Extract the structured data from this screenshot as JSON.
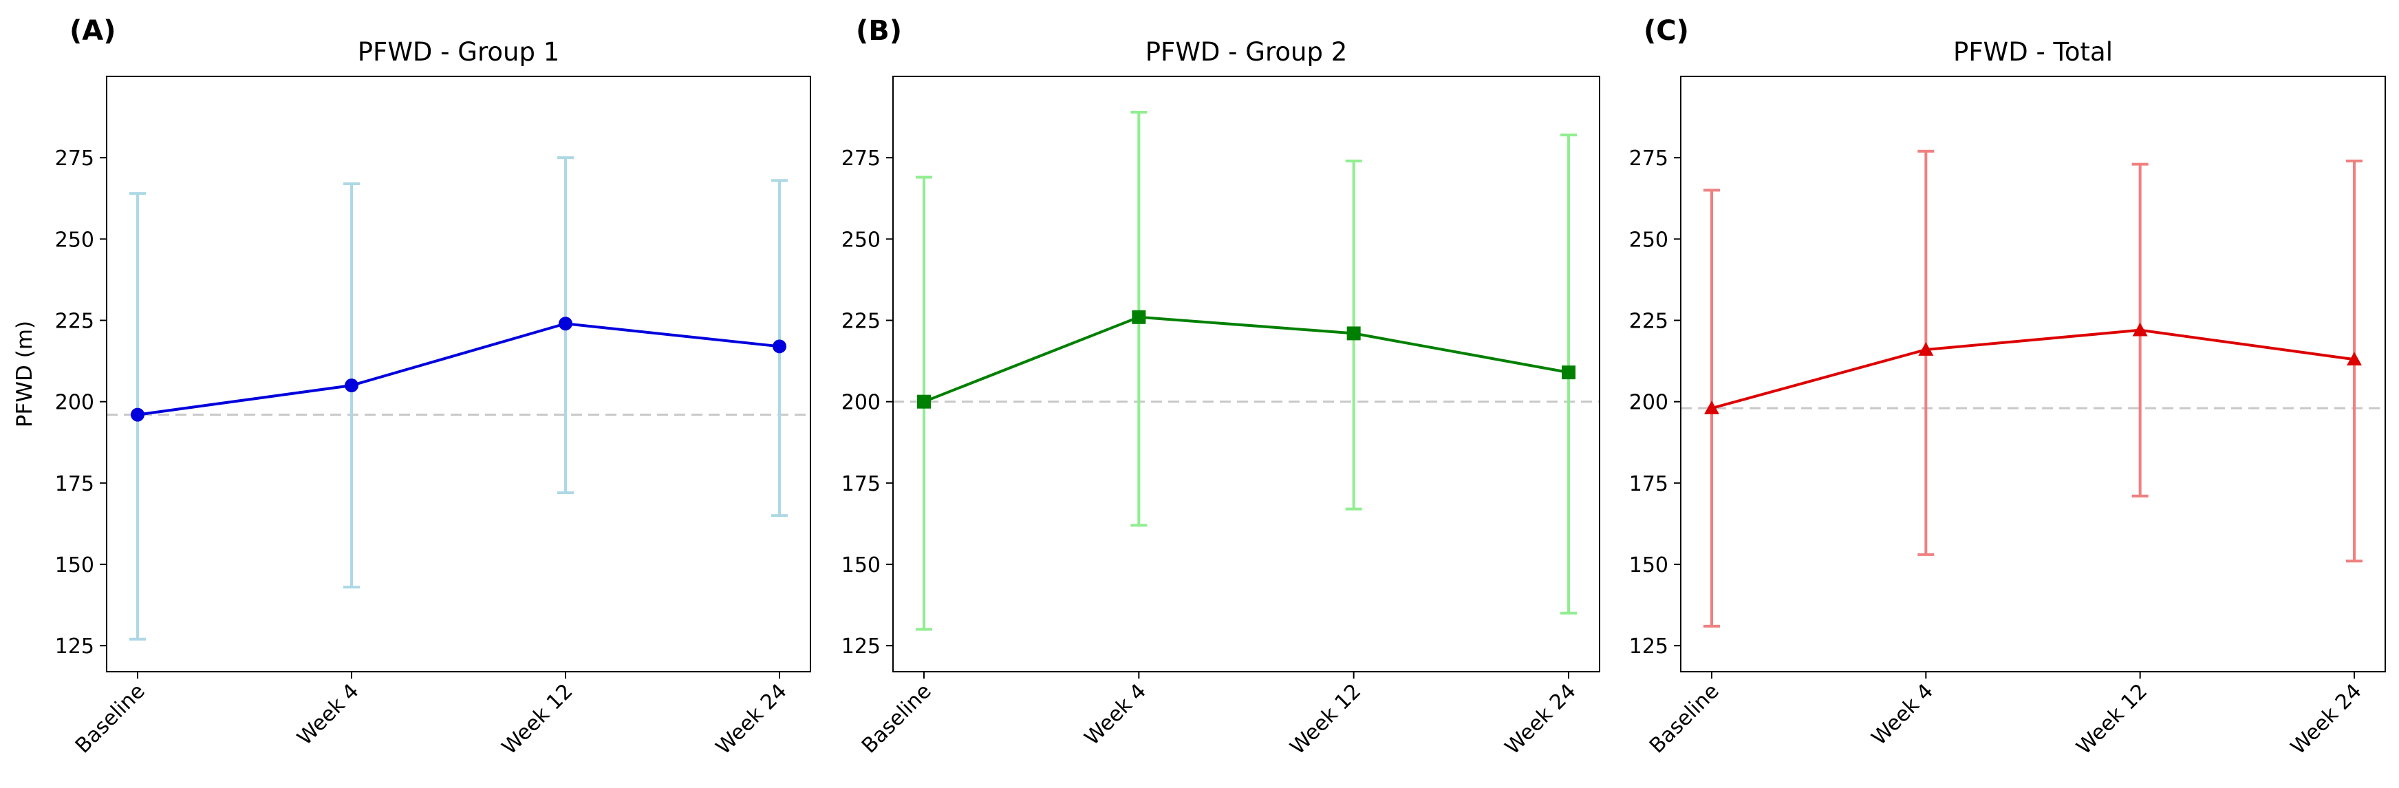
{
  "chart_data": [
    {
      "type": "line",
      "panel_label": "(A)",
      "title": "PFWD - Group 1",
      "xlabel": "",
      "ylabel": "PFWD (m)",
      "categories": [
        "Baseline",
        "Week 4",
        "Week 12",
        "Week 24"
      ],
      "series": [
        {
          "values": [
            196,
            205,
            224,
            217
          ],
          "error_low": [
            127,
            143,
            172,
            165
          ],
          "error_high": [
            264,
            267,
            275,
            268
          ],
          "line_color": "#0000dd",
          "error_color": "#add8e6",
          "marker": "circle"
        }
      ],
      "baseline_reference": 196,
      "ylim": [
        117,
        300
      ],
      "yticks": [
        125,
        150,
        175,
        200,
        225,
        250,
        275
      ],
      "grid": false
    },
    {
      "type": "line",
      "panel_label": "(B)",
      "title": "PFWD - Group 2",
      "xlabel": "",
      "ylabel": "",
      "categories": [
        "Baseline",
        "Week 4",
        "Week 12",
        "Week 24"
      ],
      "series": [
        {
          "values": [
            200,
            226,
            221,
            209
          ],
          "error_low": [
            130,
            162,
            167,
            135
          ],
          "error_high": [
            269,
            289,
            274,
            282
          ],
          "line_color": "#008000",
          "error_color": "#90ee90",
          "marker": "square"
        }
      ],
      "baseline_reference": 200,
      "ylim": [
        117,
        300
      ],
      "yticks": [
        125,
        150,
        175,
        200,
        225,
        250,
        275
      ],
      "grid": false
    },
    {
      "type": "line",
      "panel_label": "(C)",
      "title": "PFWD - Total",
      "xlabel": "",
      "ylabel": "",
      "categories": [
        "Baseline",
        "Week 4",
        "Week 12",
        "Week 24"
      ],
      "series": [
        {
          "values": [
            198,
            216,
            222,
            213
          ],
          "error_low": [
            131,
            153,
            171,
            151
          ],
          "error_high": [
            265,
            277,
            273,
            274
          ],
          "line_color": "#dd0000",
          "error_color": "#f08080",
          "marker": "triangle"
        }
      ],
      "baseline_reference": 198,
      "ylim": [
        117,
        300
      ],
      "yticks": [
        125,
        150,
        175,
        200,
        225,
        250,
        275
      ],
      "grid": false
    }
  ]
}
